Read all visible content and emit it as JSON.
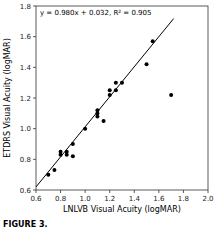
{
  "chart_data": {
    "type": "scatter",
    "xlabel": "LNLVB Visual Acuity (logMAR)",
    "ylabel": "ETDRS Visual Acuity (logMAR)",
    "annotations": [
      "y = 0.980x + 0.032, R² = 0.905",
      "FIGURE 3."
    ],
    "xlim": [
      0.6,
      2.0
    ],
    "ylim": [
      0.6,
      1.8
    ],
    "xticks": [
      0.6,
      0.8,
      {
        "value": 1.0,
        "label": "1.0"
      },
      1.2,
      1.4,
      1.6,
      1.8,
      {
        "value": 2.0,
        "label": "2.0"
      }
    ],
    "yticks": [
      0.6,
      0.8,
      {
        "value": 1.0,
        "label": "1.0"
      },
      1.2,
      1.4,
      1.6,
      1.8
    ],
    "series": [
      {
        "type": "scatter",
        "color": "black",
        "x": [
          0.7,
          0.75,
          0.8,
          0.8,
          0.85,
          0.85,
          0.9,
          0.9,
          1.0,
          1.1,
          1.1,
          1.1,
          1.15,
          1.2,
          1.2,
          1.25,
          1.25,
          1.3,
          1.5,
          1.55,
          1.7
        ],
        "values": [
          0.7,
          0.73,
          0.83,
          0.85,
          0.83,
          0.85,
          0.82,
          0.9,
          1.0,
          1.08,
          1.1,
          1.12,
          1.05,
          1.22,
          1.25,
          1.25,
          1.3,
          1.3,
          1.42,
          1.57,
          1.22
        ]
      },
      {
        "type": "line",
        "color": "black",
        "x": [
          0.6,
          1.72
        ],
        "values": [
          0.62,
          1.7176
        ]
      }
    ]
  }
}
